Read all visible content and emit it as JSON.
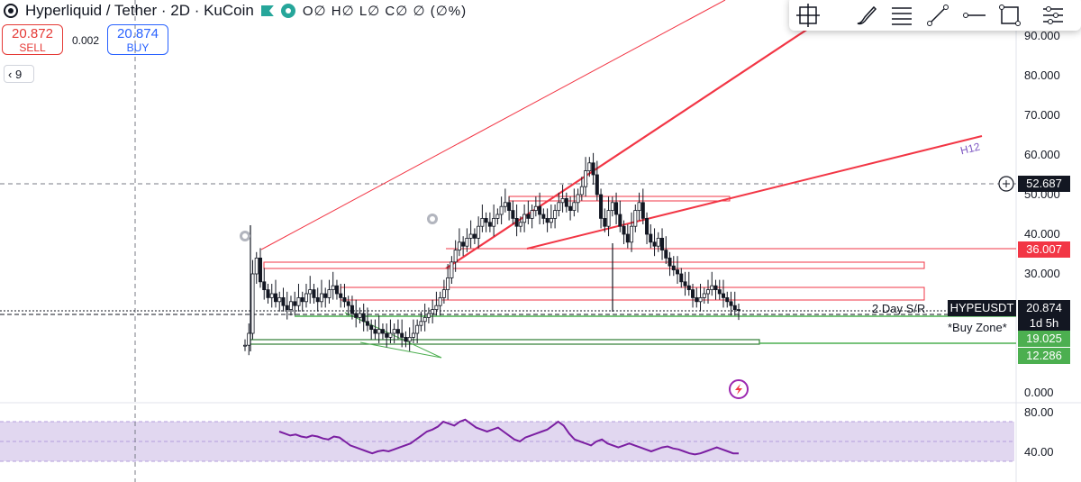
{
  "header": {
    "title": "Hyperliquid / Tether · 2D · KuCoin",
    "ohlc": "O∅ H∅ L∅ C∅ ∅ (∅%)"
  },
  "trade": {
    "sell_price": "20.872",
    "sell_label": "SELL",
    "spread": "0.002",
    "buy_price": "20.874",
    "buy_label": "BUY"
  },
  "indicator_toggle": "9",
  "toolbar": {
    "tools": [
      "crosshair-box-icon",
      "brush-icon",
      "fib-levels-icon",
      "trend-line-icon",
      "horizontal-ray-icon",
      "rectangle-icon",
      "settings-list-icon"
    ]
  },
  "chart_data": {
    "type": "candlestick",
    "price_axis": {
      "ticks": [
        "90.000",
        "80.000",
        "70.000",
        "60.000",
        "50.000",
        "40.000",
        "30.000",
        "0.000"
      ],
      "range": [
        0,
        95
      ]
    },
    "rsi_axis": {
      "ticks": [
        "80.00",
        "40.00"
      ]
    },
    "price_labels": [
      {
        "text": "52.687",
        "color": "#131722",
        "kind": "crosshair"
      },
      {
        "text": "36.007",
        "color": "#f23645",
        "kind": "resistance"
      },
      {
        "text": "HYPEUSDT",
        "color": "#131722",
        "kind": "symbol"
      },
      {
        "text": "20.874",
        "color": "#131722",
        "kind": "last-price"
      },
      {
        "text": "1d 5h",
        "color": "#131722",
        "kind": "countdown"
      },
      {
        "text": "19.025",
        "color": "#4caf50",
        "kind": "support"
      },
      {
        "text": "12.286",
        "color": "#4caf50",
        "kind": "support"
      }
    ],
    "annotations": {
      "sr_label": "2 Day S/R",
      "buy_zone": "*Buy Zone*",
      "trendline_label": "H12"
    },
    "candles_close": [
      12,
      15,
      30,
      34,
      28,
      26,
      24,
      25,
      23,
      24,
      22,
      21,
      23,
      22,
      24,
      23,
      25,
      26,
      24,
      23,
      25,
      24,
      26,
      27,
      25,
      24,
      23,
      22,
      20,
      19,
      20,
      18,
      17,
      16,
      15,
      16,
      15,
      14,
      15,
      16,
      15,
      14,
      13,
      14,
      15,
      17,
      18,
      19,
      20,
      21,
      22,
      24,
      26,
      29,
      33,
      36,
      38,
      37,
      39,
      40,
      39,
      42,
      44,
      43,
      42,
      44,
      45,
      47,
      48,
      46,
      44,
      42,
      43,
      45,
      44,
      46,
      47,
      45,
      44,
      43,
      44,
      46,
      48,
      49,
      47,
      46,
      48,
      50,
      52,
      56,
      58,
      55,
      50,
      44,
      42,
      46,
      48,
      45,
      42,
      40,
      38,
      42,
      46,
      48,
      44,
      40,
      38,
      37,
      39,
      36,
      34,
      32,
      31,
      30,
      28,
      27,
      26,
      24,
      23,
      24,
      25,
      26,
      27,
      26,
      25,
      24,
      23,
      22,
      21,
      20.874
    ],
    "rsi_values": [
      60,
      58,
      56,
      57,
      55,
      54,
      56,
      55,
      53,
      52,
      55,
      54,
      50,
      46,
      44,
      42,
      40,
      38,
      40,
      41,
      40,
      42,
      44,
      46,
      48,
      52,
      56,
      60,
      62,
      65,
      70,
      68,
      66,
      70,
      72,
      68,
      64,
      62,
      60,
      62,
      64,
      60,
      56,
      52,
      50,
      54,
      56,
      58,
      60,
      62,
      66,
      70,
      66,
      58,
      52,
      50,
      48,
      46,
      50,
      52,
      48,
      46,
      44,
      46,
      48,
      46,
      44,
      42,
      40,
      42,
      44,
      45,
      43,
      42,
      40,
      38,
      37,
      38,
      40,
      42,
      44,
      42,
      40,
      38,
      38
    ]
  }
}
